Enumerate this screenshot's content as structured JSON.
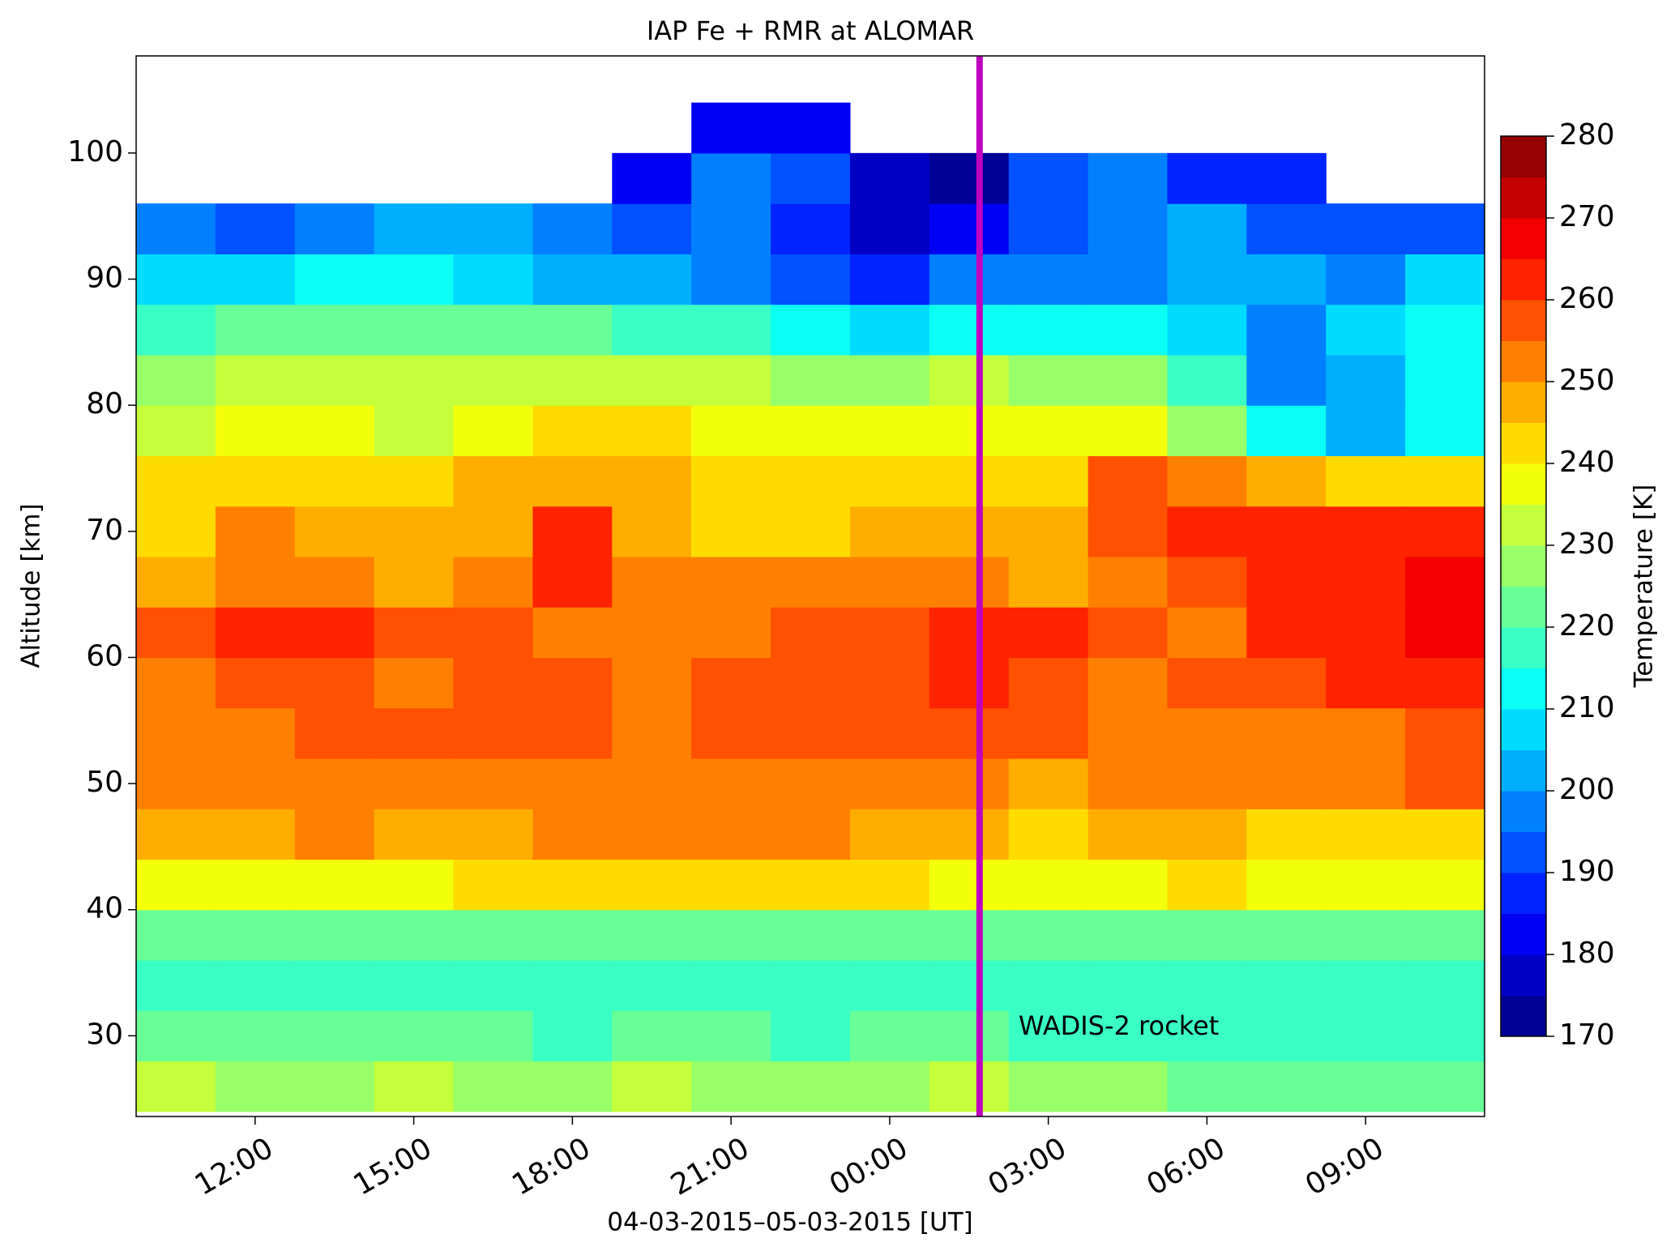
{
  "chart_data": {
    "type": "heatmap",
    "title": "IAP Fe + RMR at ALOMAR",
    "xlabel": "04-03-2015–05-03-2015 [UT]",
    "ylabel": "Altitude [km]",
    "colorbar_label": "Temperature [K]",
    "xlim": [
      9.75,
      35.25
    ],
    "ylim": [
      23.6,
      107.7
    ],
    "xticks": [
      {
        "value": 12,
        "label": "12:00"
      },
      {
        "value": 15,
        "label": "15:00"
      },
      {
        "value": 18,
        "label": "18:00"
      },
      {
        "value": 21,
        "label": "21:00"
      },
      {
        "value": 24,
        "label": "00:00"
      },
      {
        "value": 27,
        "label": "03:00"
      },
      {
        "value": 30,
        "label": "06:00"
      },
      {
        "value": 33,
        "label": "09:00"
      }
    ],
    "yticks": [
      30,
      40,
      50,
      60,
      70,
      80,
      90,
      100
    ],
    "clim": [
      170,
      280
    ],
    "cticks": [
      170,
      180,
      190,
      200,
      210,
      220,
      230,
      240,
      250,
      260,
      270,
      280
    ],
    "colormap": [
      "#000097",
      "#0000c5",
      "#0000f3",
      "#0023ff",
      "#0051ff",
      "#0080ff",
      "#00aeff",
      "#00dcff",
      "#0bfff3",
      "#3affc5",
      "#68ff97",
      "#97ff68",
      "#c5ff3a",
      "#f3ff0b",
      "#ffdc00",
      "#ffae00",
      "#ff8000",
      "#ff5100",
      "#ff2300",
      "#f30000",
      "#c50000",
      "#970000"
    ],
    "x_bins": [
      9.75,
      11.25,
      12.75,
      14.25,
      15.75,
      17.25,
      18.75,
      20.25,
      21.75,
      23.25,
      24.75,
      26.25,
      27.75,
      29.25,
      30.75,
      32.25,
      33.75,
      35.25
    ],
    "y_bins": [
      24,
      28,
      32,
      36,
      40,
      44,
      48,
      52,
      56,
      60,
      64,
      68,
      72,
      76,
      80,
      84,
      88,
      92,
      96,
      100,
      104
    ],
    "z": [
      [
        230,
        228,
        228,
        230,
        228,
        228,
        230,
        228,
        228,
        228,
        230,
        228,
        226,
        224,
        224,
        222,
        222
      ],
      [
        222,
        222,
        220,
        220,
        220,
        218,
        220,
        220,
        218,
        220,
        220,
        218,
        218,
        216,
        218,
        218,
        218
      ],
      [
        216,
        216,
        216,
        216,
        216,
        216,
        216,
        216,
        216,
        216,
        216,
        216,
        216,
        216,
        216,
        216,
        216
      ],
      [
        224,
        222,
        222,
        220,
        220,
        220,
        220,
        220,
        220,
        220,
        220,
        222,
        222,
        222,
        222,
        220,
        220
      ],
      [
        238,
        235,
        236,
        238,
        240,
        242,
        242,
        240,
        240,
        240,
        238,
        236,
        236,
        240,
        238,
        236,
        236
      ],
      [
        246,
        248,
        250,
        246,
        248,
        250,
        252,
        250,
        250,
        248,
        246,
        244,
        246,
        248,
        244,
        240,
        242
      ],
      [
        252,
        252,
        250,
        250,
        252,
        254,
        252,
        252,
        252,
        252,
        250,
        248,
        250,
        252,
        250,
        252,
        255
      ],
      [
        250,
        252,
        256,
        258,
        258,
        256,
        254,
        256,
        258,
        256,
        258,
        256,
        252,
        250,
        252,
        252,
        255
      ],
      [
        252,
        255,
        256,
        254,
        256,
        256,
        254,
        256,
        258,
        258,
        262,
        258,
        254,
        256,
        258,
        260,
        262
      ],
      [
        256,
        262,
        260,
        258,
        256,
        254,
        254,
        254,
        256,
        258,
        262,
        260,
        256,
        254,
        262,
        264,
        268
      ],
      [
        248,
        250,
        250,
        248,
        252,
        262,
        250,
        250,
        250,
        252,
        250,
        248,
        252,
        258,
        264,
        262,
        266
      ],
      [
        244,
        250,
        246,
        246,
        248,
        260,
        246,
        244,
        244,
        246,
        246,
        246,
        258,
        264,
        262,
        262,
        260
      ],
      [
        240,
        244,
        242,
        244,
        246,
        248,
        248,
        244,
        242,
        242,
        244,
        244,
        256,
        250,
        248,
        244,
        240
      ],
      [
        232,
        236,
        236,
        234,
        238,
        240,
        240,
        238,
        236,
        236,
        238,
        236,
        236,
        228,
        210,
        204,
        212
      ],
      [
        226,
        230,
        232,
        230,
        232,
        232,
        232,
        230,
        228,
        226,
        230,
        228,
        228,
        218,
        196,
        200,
        212
      ],
      [
        218,
        220,
        224,
        222,
        222,
        222,
        218,
        216,
        210,
        206,
        214,
        210,
        210,
        206,
        196,
        208,
        214
      ],
      [
        206,
        206,
        210,
        212,
        208,
        202,
        200,
        198,
        194,
        186,
        196,
        196,
        198,
        200,
        204,
        198,
        206
      ],
      [
        196,
        190,
        196,
        200,
        204,
        198,
        192,
        196,
        188,
        176,
        182,
        192,
        196,
        202,
        190,
        192,
        194
      ],
      [
        null,
        null,
        null,
        null,
        null,
        null,
        180,
        195,
        190,
        175,
        172,
        190,
        195,
        185,
        185,
        null,
        null
      ],
      [
        null,
        null,
        null,
        null,
        null,
        null,
        null,
        180,
        180,
        null,
        null,
        null,
        null,
        null,
        null,
        null,
        null
      ]
    ],
    "vline": {
      "x": 25.7,
      "color": "#c000c0",
      "label": "WADIS-2 rocket"
    }
  }
}
